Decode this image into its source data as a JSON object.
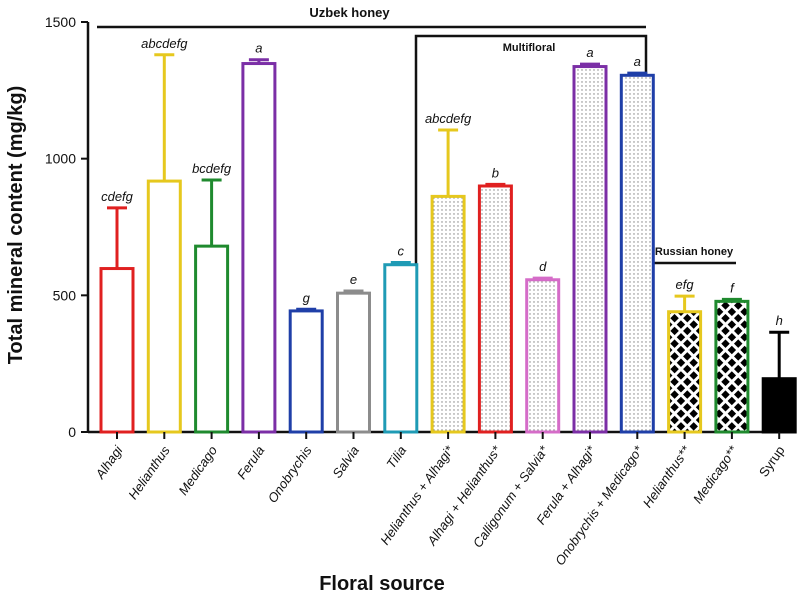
{
  "chart_data": {
    "type": "bar",
    "title": "",
    "xlabel": "Floral source",
    "ylabel": "Total mineral content (mg/kg)",
    "ylim": [
      0,
      1500
    ],
    "yticks": [
      0,
      500,
      1000,
      1500
    ],
    "grid": false,
    "categories": [
      {
        "label": "Alhagi",
        "italic": true
      },
      {
        "label": "Helianthus",
        "italic": true
      },
      {
        "label": "Medicago",
        "italic": true
      },
      {
        "label": "Ferula",
        "italic": true
      },
      {
        "label": "Onobrychis",
        "italic": true
      },
      {
        "label": "Salvia",
        "italic": true
      },
      {
        "label": "Tilia",
        "italic": true
      },
      {
        "label": "Helianthus + Alhagi*",
        "italic": true
      },
      {
        "label": "Alhagi + Helianthus*",
        "italic": true
      },
      {
        "label": "Calligonum + Salvia*",
        "italic": true
      },
      {
        "label": "Ferula + Alhagi*",
        "italic": true
      },
      {
        "label": "Onobrychis + Medicago*",
        "italic": true
      },
      {
        "label": "Helianthus**",
        "italic": true
      },
      {
        "label": "Medicago**",
        "italic": true
      },
      {
        "label": "Syrup",
        "italic": false
      }
    ],
    "values": [
      598,
      918,
      680,
      1348,
      443,
      508,
      612,
      862,
      900,
      557,
      1337,
      1305,
      440,
      478,
      195
    ],
    "errors": [
      222,
      462,
      242,
      14,
      6,
      8,
      8,
      243,
      6,
      6,
      9,
      8,
      57,
      7,
      170
    ],
    "significance": [
      "cdefg",
      "abcdefg",
      "bcdefg",
      "a",
      "g",
      "e",
      "c",
      "abcdefg",
      "b",
      "d",
      "a",
      "a",
      "efg",
      "f",
      "h"
    ],
    "colors": [
      "#e02020",
      "#e6c81e",
      "#1f8a2e",
      "#7b2fa6",
      "#1f3fa8",
      "#8c8c8c",
      "#1f9bb5",
      "#e6c81e",
      "#e02020",
      "#d56cc8",
      "#7b2fa6",
      "#1f3fa8",
      "#e6c81e",
      "#1f8a2e",
      "#000000"
    ],
    "fills": [
      "none",
      "none",
      "none",
      "none",
      "none",
      "none",
      "none",
      "dots",
      "dots",
      "dots",
      "dots",
      "dots",
      "crosshatch",
      "crosshatch",
      "solid"
    ],
    "groups": [
      {
        "label": "Uzbek honey",
        "from": 0,
        "to": 11,
        "style": "line"
      },
      {
        "label": "Multifloral",
        "from": 7,
        "to": 11,
        "style": "box"
      },
      {
        "label": "Russian honey",
        "from": 12,
        "to": 13,
        "style": "line"
      }
    ]
  }
}
